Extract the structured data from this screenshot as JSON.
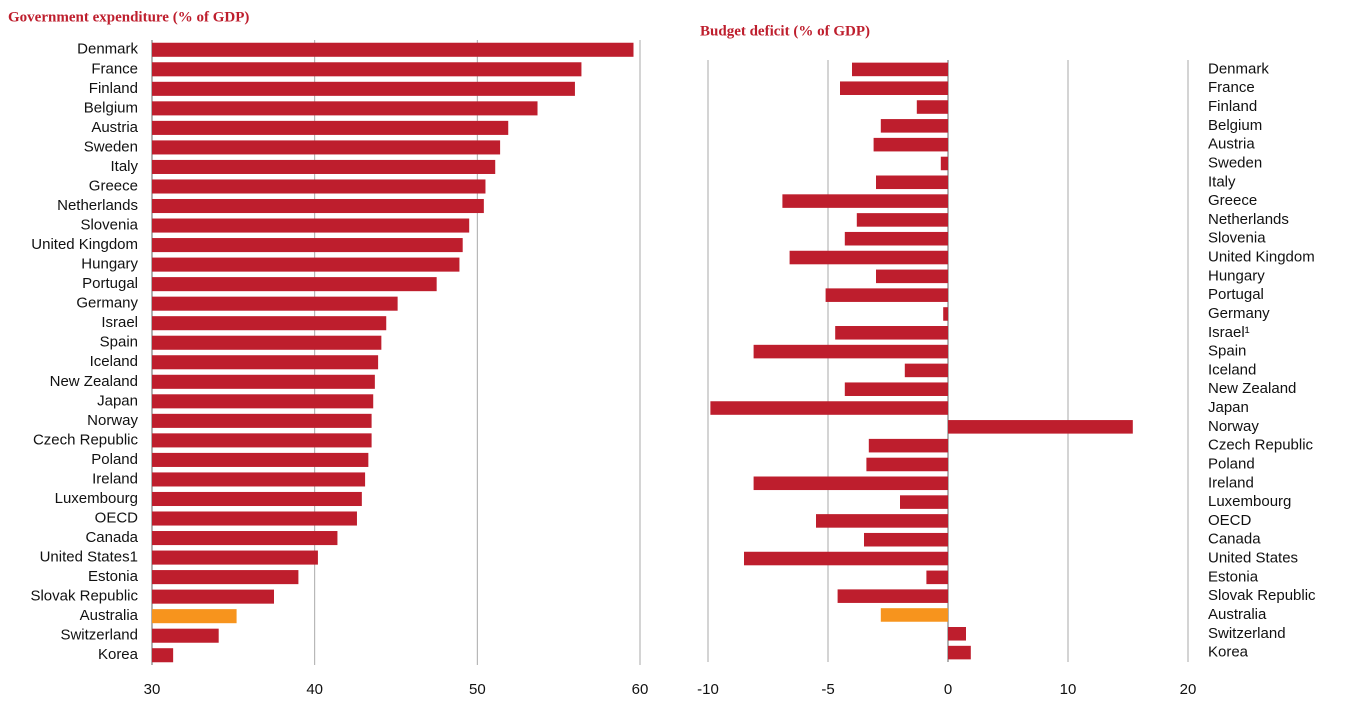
{
  "chart_data": [
    {
      "type": "hbar",
      "title": "Government expenditure (% of GDP)",
      "categories": [
        "Denmark",
        "France",
        "Finland",
        "Belgium",
        "Austria",
        "Sweden",
        "Italy",
        "Greece",
        "Netherlands",
        "Slovenia",
        "United Kingdom",
        "Hungary",
        "Portugal",
        "Germany",
        "Israel",
        "Spain",
        "Iceland",
        "New Zealand",
        "Japan",
        "Norway",
        "Czech Republic",
        "Poland",
        "Ireland",
        "Luxembourg",
        "OECD",
        "Canada",
        "United States1",
        "Estonia",
        "Slovak Republic",
        "Australia",
        "Switzerland",
        "Korea"
      ],
      "values": [
        59.6,
        56.4,
        56.0,
        53.7,
        51.9,
        51.4,
        51.1,
        50.5,
        50.4,
        49.5,
        49.1,
        48.9,
        47.5,
        45.1,
        44.4,
        44.1,
        43.9,
        43.7,
        43.6,
        43.5,
        43.5,
        43.3,
        43.1,
        42.9,
        42.6,
        41.4,
        40.2,
        39.0,
        37.5,
        35.2,
        34.1,
        31.3
      ],
      "colors": [
        "#be1e2d",
        "#be1e2d",
        "#be1e2d",
        "#be1e2d",
        "#be1e2d",
        "#be1e2d",
        "#be1e2d",
        "#be1e2d",
        "#be1e2d",
        "#be1e2d",
        "#be1e2d",
        "#be1e2d",
        "#be1e2d",
        "#be1e2d",
        "#be1e2d",
        "#be1e2d",
        "#be1e2d",
        "#be1e2d",
        "#be1e2d",
        "#be1e2d",
        "#be1e2d",
        "#be1e2d",
        "#be1e2d",
        "#be1e2d",
        "#be1e2d",
        "#be1e2d",
        "#be1e2d",
        "#be1e2d",
        "#be1e2d",
        "#f7941d",
        "#be1e2d",
        "#be1e2d"
      ],
      "xlim": [
        30,
        60
      ],
      "xticks": [
        30,
        40,
        50,
        60
      ],
      "grid": true,
      "label_side": "left"
    },
    {
      "type": "hbar",
      "title": "Budget deficit (% of GDP)",
      "categories": [
        "Denmark",
        "France",
        "Finland",
        "Belgium",
        "Austria",
        "Sweden",
        "Italy",
        "Greece",
        "Netherlands",
        "Slovenia",
        "United Kingdom",
        "Hungary",
        "Portugal",
        "Germany",
        "Israel¹",
        "Spain",
        "Iceland",
        "New Zealand",
        "Japan",
        "Norway",
        "Czech Republic",
        "Poland",
        "Ireland",
        "Luxembourg",
        "OECD",
        "Canada",
        "United States",
        "Estonia",
        "Slovak Republic",
        "Australia",
        "Switzerland",
        "Korea"
      ],
      "values": [
        -4.0,
        -4.5,
        -1.3,
        -2.8,
        -3.1,
        -0.3,
        -3.0,
        -6.9,
        -3.8,
        -4.3,
        -6.6,
        -3.0,
        -5.1,
        -0.2,
        -4.7,
        -8.1,
        -1.8,
        -4.3,
        -9.9,
        15.4,
        -3.3,
        -3.4,
        -8.1,
        -2.0,
        -5.5,
        -3.5,
        -8.5,
        -0.9,
        -4.6,
        -2.8,
        1.5,
        1.9
      ],
      "colors": [
        "#be1e2d",
        "#be1e2d",
        "#be1e2d",
        "#be1e2d",
        "#be1e2d",
        "#be1e2d",
        "#be1e2d",
        "#be1e2d",
        "#be1e2d",
        "#be1e2d",
        "#be1e2d",
        "#be1e2d",
        "#be1e2d",
        "#be1e2d",
        "#be1e2d",
        "#be1e2d",
        "#be1e2d",
        "#be1e2d",
        "#be1e2d",
        "#be1e2d",
        "#be1e2d",
        "#be1e2d",
        "#be1e2d",
        "#be1e2d",
        "#be1e2d",
        "#be1e2d",
        "#be1e2d",
        "#be1e2d",
        "#be1e2d",
        "#f7941d",
        "#be1e2d",
        "#be1e2d"
      ],
      "xlim": [
        -10,
        20
      ],
      "xticks": [
        -10,
        -5,
        0,
        10,
        20
      ],
      "grid": true,
      "label_side": "right"
    }
  ]
}
